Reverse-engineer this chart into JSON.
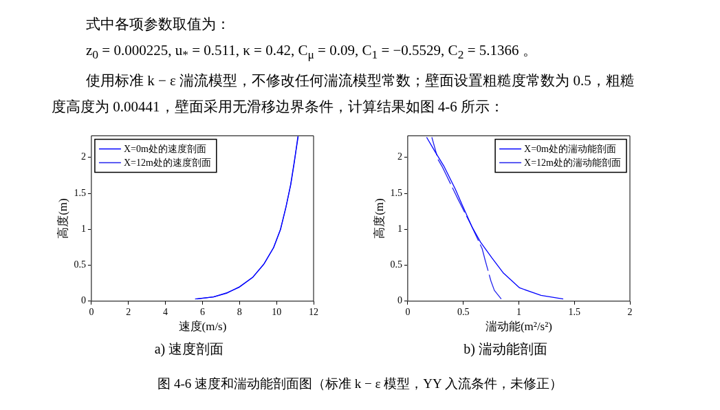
{
  "chart_data": [
    {
      "type": "line",
      "title": "a)  速度剖面",
      "xlabel": "速度(m/s)",
      "ylabel": "高度(m)",
      "xlim": [
        0,
        12
      ],
      "xticks": [
        0,
        2,
        4,
        6,
        8,
        10,
        12
      ],
      "ylim": [
        0,
        2.3
      ],
      "yticks": [
        0,
        0.5,
        1,
        1.5,
        2
      ],
      "grid": false,
      "legend": "top left",
      "marker": "none",
      "annotations": [
        "式中各项参数取值为：",
        "z$_{0}$ = 0.000225, u$_{*}$ = 0.511, κ = 0.42, C$_{μ}$ = 0.09, C$_{1}$ = −0.5529, C$_{2}$ = 5.1366 。",
        "使用标准 k − ε 湍流模型，不修改任何湍流模型常数；壁面设置粗糙度常数为 0.5，粗糙度高度为 0.00441，壁面采用无滑移边界条件，计算结果如图 4-6 所示：",
        "图 4-6  速度和湍动能剖面图（标准 k − ε 模型，YY 入流条件，未修正）"
      ],
      "series": [
        {
          "name": "X=0m处的速度剖面",
          "color": "#0000ff",
          "line_style": "solid",
          "x": [
            5.6,
            6.59,
            7.34,
            7.96,
            8.71,
            9.33,
            9.83,
            10.2,
            10.51,
            10.76,
            10.95,
            11.17
          ],
          "values": [
            0.03,
            0.06,
            0.12,
            0.19,
            0.33,
            0.52,
            0.74,
            0.99,
            1.31,
            1.62,
            1.93,
            2.29
          ]
        },
        {
          "name": "X=12m处的速度剖面",
          "color": "#2222ee",
          "line_style": "solid",
          "x": [
            5.7,
            6.6,
            7.3,
            8.0,
            8.7,
            9.3,
            9.85,
            10.22,
            10.5,
            10.77,
            10.96,
            11.15
          ],
          "values": [
            0.03,
            0.06,
            0.11,
            0.2,
            0.33,
            0.51,
            0.75,
            1.0,
            1.3,
            1.62,
            1.93,
            2.29
          ]
        }
      ]
    },
    {
      "type": "line",
      "title": "b)  湍动能剖面",
      "xlabel": "湍动能(m²/s²)",
      "ylabel": "高度(m)",
      "xlim": [
        0,
        2
      ],
      "xticks": [
        0,
        0.5,
        1,
        1.5,
        2
      ],
      "ylim": [
        0,
        2.3
      ],
      "yticks": [
        0,
        0.5,
        1,
        1.5,
        2
      ],
      "grid": false,
      "legend": "top right",
      "marker": "none",
      "series": [
        {
          "name": "X=0m处的湍动能剖面",
          "color": "#0000ff",
          "line_style": "solid",
          "x": [
            1.4,
            1.2,
            1.007,
            0.862,
            0.759,
            0.656,
            0.583,
            0.49,
            0.428,
            0.325,
            0.242,
            0.17
          ],
          "values": [
            0.03,
            0.08,
            0.185,
            0.39,
            0.6,
            0.82,
            1.02,
            1.34,
            1.56,
            1.88,
            2.09,
            2.28
          ]
        },
        {
          "name": "X=12m处的湍动能剖面",
          "color": "#2222ee",
          "line_style": "dashed",
          "x": [
            0.842,
            0.78,
            0.749,
            0.697,
            0.67,
            0.573,
            0.449,
            0.314,
            0.273,
            0.217
          ],
          "values": [
            0.03,
            0.15,
            0.28,
            0.57,
            0.73,
            1.05,
            1.43,
            1.86,
            1.97,
            2.28
          ]
        }
      ]
    }
  ]
}
